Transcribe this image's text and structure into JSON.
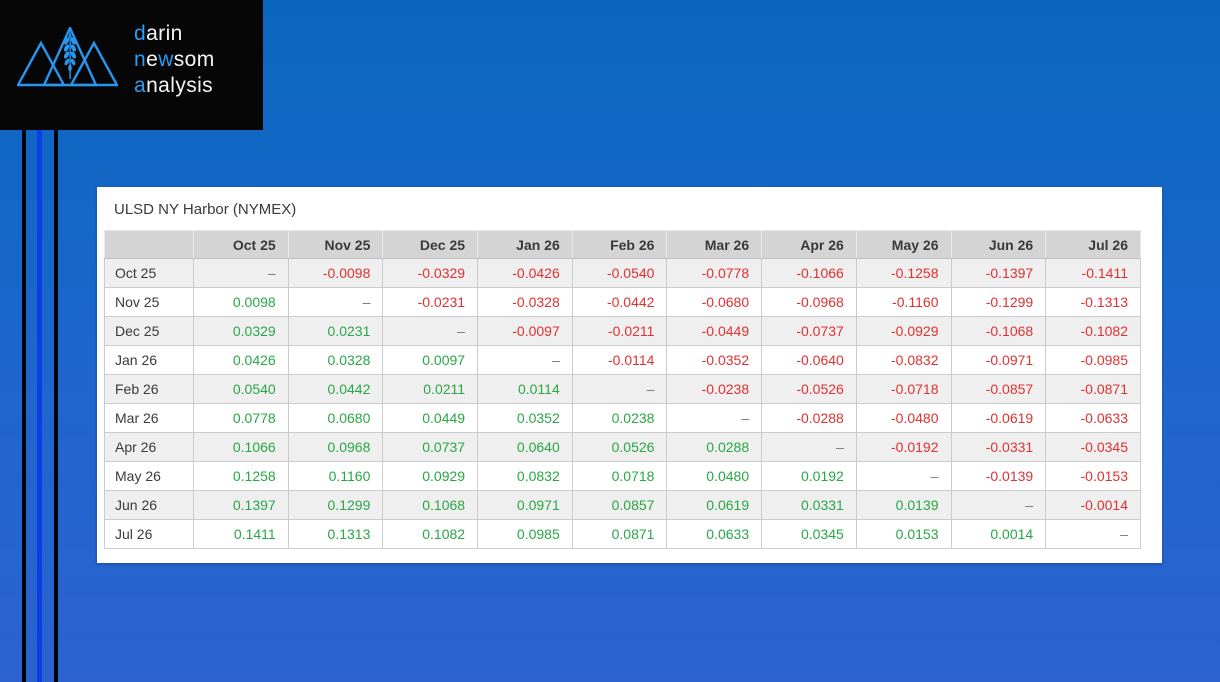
{
  "brand": {
    "icon": "mountains-wheat",
    "lines": [
      [
        {
          "t": "d",
          "a": true
        },
        {
          "t": "arin",
          "a": false
        }
      ],
      [
        {
          "t": "n",
          "a": true
        },
        {
          "t": "e",
          "a": false
        },
        {
          "t": "w",
          "a": true
        },
        {
          "t": "som",
          "a": false
        }
      ],
      [
        {
          "t": "a",
          "a": true
        },
        {
          "t": "nalysis",
          "a": false
        }
      ]
    ],
    "accent_color": "#2e9bf5",
    "text_color": "#f5f5f5",
    "box_color": "#060606"
  },
  "decor": {
    "background_top": "#0a67be",
    "background_bottom": "#2b62ce",
    "stripe_blue": "#0b3fe6",
    "stripe_black": "#03030a"
  },
  "chart_data": {
    "type": "table",
    "title": "ULSD NY Harbor (NYMEX)",
    "columns": [
      "Oct 25",
      "Nov 25",
      "Dec 25",
      "Jan 26",
      "Feb 26",
      "Mar 26",
      "Apr 26",
      "May 26",
      "Jun 26",
      "Jul 26"
    ],
    "row_labels": [
      "Oct 25",
      "Nov 25",
      "Dec 25",
      "Jan 26",
      "Feb 26",
      "Mar 26",
      "Apr 26",
      "May 26",
      "Jun 26",
      "Jul 26"
    ],
    "values": [
      [
        "–",
        "-0.0098",
        "-0.0329",
        "-0.0426",
        "-0.0540",
        "-0.0778",
        "-0.1066",
        "-0.1258",
        "-0.1397",
        "-0.1411"
      ],
      [
        "0.0098",
        "–",
        "-0.0231",
        "-0.0328",
        "-0.0442",
        "-0.0680",
        "-0.0968",
        "-0.1160",
        "-0.1299",
        "-0.1313"
      ],
      [
        "0.0329",
        "0.0231",
        "–",
        "-0.0097",
        "-0.0211",
        "-0.0449",
        "-0.0737",
        "-0.0929",
        "-0.1068",
        "-0.1082"
      ],
      [
        "0.0426",
        "0.0328",
        "0.0097",
        "–",
        "-0.0114",
        "-0.0352",
        "-0.0640",
        "-0.0832",
        "-0.0971",
        "-0.0985"
      ],
      [
        "0.0540",
        "0.0442",
        "0.0211",
        "0.0114",
        "–",
        "-0.0238",
        "-0.0526",
        "-0.0718",
        "-0.0857",
        "-0.0871"
      ],
      [
        "0.0778",
        "0.0680",
        "0.0449",
        "0.0352",
        "0.0238",
        "–",
        "-0.0288",
        "-0.0480",
        "-0.0619",
        "-0.0633"
      ],
      [
        "0.1066",
        "0.0968",
        "0.0737",
        "0.0640",
        "0.0526",
        "0.0288",
        "–",
        "-0.0192",
        "-0.0331",
        "-0.0345"
      ],
      [
        "0.1258",
        "0.1160",
        "0.0929",
        "0.0832",
        "0.0718",
        "0.0480",
        "0.0192",
        "–",
        "-0.0139",
        "-0.0153"
      ],
      [
        "0.1397",
        "0.1299",
        "0.1068",
        "0.0971",
        "0.0857",
        "0.0619",
        "0.0331",
        "0.0139",
        "–",
        "-0.0014"
      ],
      [
        "0.1411",
        "0.1313",
        "0.1082",
        "0.0985",
        "0.0871",
        "0.0633",
        "0.0345",
        "0.0153",
        "0.0014",
        "–"
      ]
    ],
    "positive_color": "#28a745",
    "negative_color": "#e03131",
    "diagonal_char": "–",
    "legend_position": "none",
    "grid": true
  }
}
